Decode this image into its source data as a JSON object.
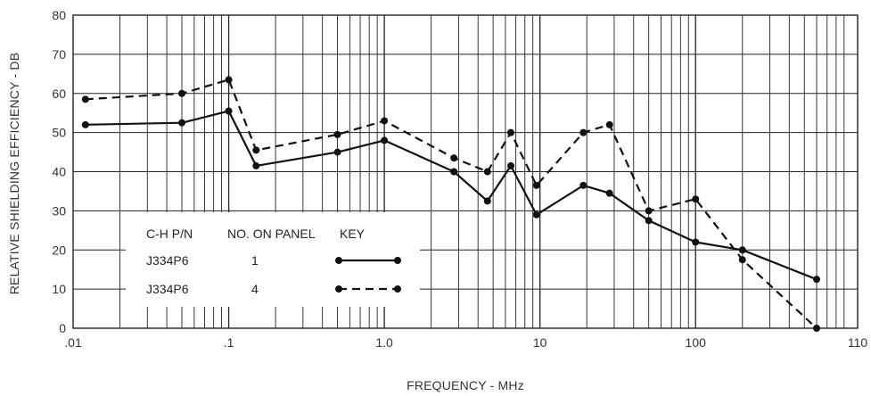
{
  "chart_data": {
    "type": "line",
    "xlabel": "FREQUENCY - MHz",
    "ylabel": "RELATIVE SHIELDING EFFICIENCY - DB",
    "x_scale": "log",
    "xlim": [
      0.01,
      1100
    ],
    "ylim": [
      0,
      80
    ],
    "grid": true,
    "x_tick_labels": [
      ".01",
      ".1",
      "1.0",
      "10",
      "100",
      "110"
    ],
    "y_ticks": [
      0,
      10,
      20,
      30,
      40,
      50,
      60,
      70,
      80
    ],
    "legend": {
      "position": "bottom-left",
      "headers": [
        "C-H P/N",
        "NO. ON PANEL",
        "KEY"
      ],
      "rows": [
        {
          "part": "J334P6",
          "panel": "1",
          "style": "solid"
        },
        {
          "part": "J334P6",
          "panel": "4",
          "style": "dashed"
        }
      ]
    },
    "series": [
      {
        "style": "solid",
        "x": [
          0.012,
          0.05,
          0.1,
          0.15,
          0.5,
          1.0,
          2.8,
          4.6,
          6.5,
          9.5,
          19,
          28,
          50,
          100,
          200,
          600
        ],
        "y": [
          52,
          52.5,
          55.5,
          41.5,
          45,
          48,
          40,
          32.5,
          41.5,
          29,
          36.5,
          34.5,
          27.5,
          22,
          20,
          12.5
        ]
      },
      {
        "style": "dashed",
        "x": [
          0.012,
          0.05,
          0.1,
          0.15,
          0.5,
          1.0,
          2.8,
          4.6,
          6.5,
          9.5,
          19,
          28,
          50,
          100,
          200,
          600
        ],
        "y": [
          58.5,
          60,
          63.5,
          45.5,
          49.5,
          53,
          43.5,
          40,
          50,
          36.5,
          50,
          52,
          30,
          33,
          17.5,
          0
        ]
      }
    ]
  }
}
